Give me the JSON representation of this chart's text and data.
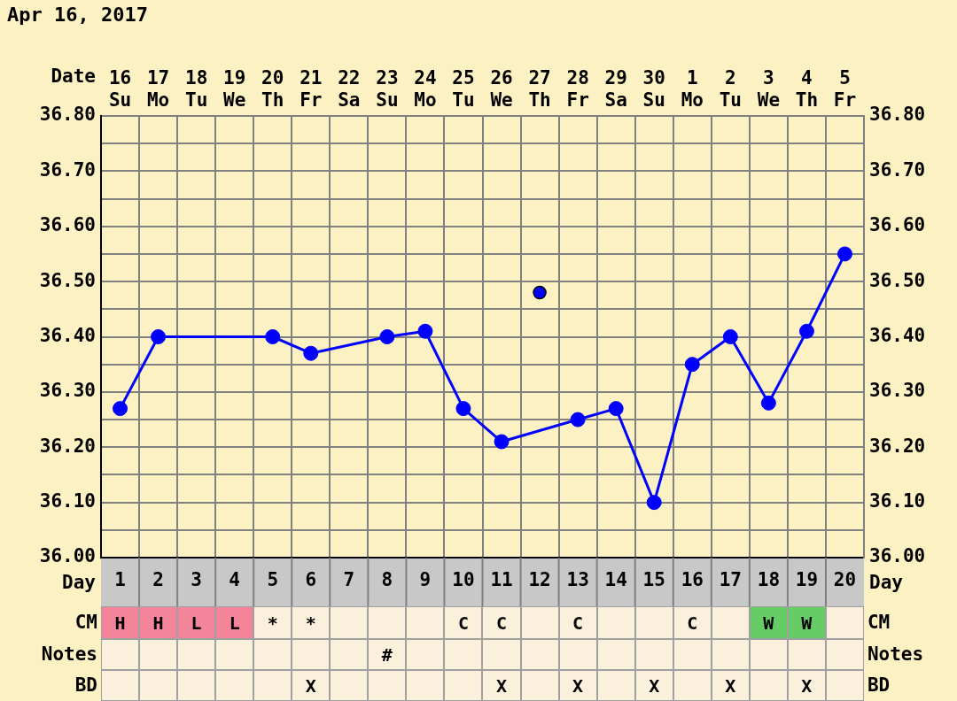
{
  "chart_data": [
    {
      "type": "line",
      "title": "Apr 16, 2017",
      "xlabel": "Date",
      "x2label": "Day",
      "categories": [
        "16 Su",
        "17 Mo",
        "18 Tu",
        "19 We",
        "20 Th",
        "21 Fr",
        "22 Sa",
        "23 Su",
        "24 Mo",
        "25 Tu",
        "26 We",
        "27 Th",
        "28 Fr",
        "29 Sa",
        "30 Su",
        "1 Mo",
        "2 Tu",
        "3 We",
        "4 Th",
        "5 Fr"
      ],
      "series": [
        {
          "type": "line",
          "color": "#0000ff",
          "values": [
            36.27,
            36.4,
            null,
            null,
            36.4,
            36.37,
            null,
            36.4,
            36.41,
            36.27,
            36.21,
            null,
            36.25,
            36.27,
            36.1,
            36.35,
            36.4,
            36.28,
            36.41,
            36.55
          ]
        },
        {
          "type": "scatter",
          "color": "#0000ff",
          "values": [
            null,
            null,
            null,
            null,
            null,
            null,
            null,
            null,
            null,
            null,
            null,
            36.48,
            null,
            null,
            null,
            null,
            null,
            null,
            null,
            null
          ]
        }
      ],
      "x2lim": [
        0.5,
        20.5
      ],
      "x2ticks": [
        1,
        2,
        3,
        4,
        5,
        6,
        7,
        8,
        9,
        10,
        11,
        12,
        13,
        14,
        15,
        16,
        17,
        18,
        19,
        20
      ],
      "ylim": [
        36.0,
        36.8
      ],
      "yticks": [
        {
          "value": 36.0,
          "label": "36.00"
        },
        {
          "value": 36.05,
          "label": null
        },
        {
          "value": 36.1,
          "label": "36.10"
        },
        {
          "value": 36.15,
          "label": null
        },
        {
          "value": 36.2,
          "label": "36.20"
        },
        {
          "value": 36.25,
          "label": null
        },
        {
          "value": 36.3,
          "label": "36.30"
        },
        {
          "value": 36.35,
          "label": null
        },
        {
          "value": 36.4,
          "label": "36.40"
        },
        {
          "value": 36.45,
          "label": null
        },
        {
          "value": 36.5,
          "label": "36.50"
        },
        {
          "value": 36.55,
          "label": null
        },
        {
          "value": 36.6,
          "label": "36.60"
        },
        {
          "value": 36.65,
          "label": null
        },
        {
          "value": 36.7,
          "label": "36.70"
        },
        {
          "value": 36.75,
          "label": null
        },
        {
          "value": 36.8,
          "label": "36.80"
        }
      ],
      "y2lim": [
        36.0,
        36.8
      ],
      "y2ticks": [
        {
          "value": 36.0,
          "label": "36.00"
        },
        {
          "value": 36.05,
          "label": null
        },
        {
          "value": 36.1,
          "label": "36.10"
        },
        {
          "value": 36.15,
          "label": null
        },
        {
          "value": 36.2,
          "label": "36.20"
        },
        {
          "value": 36.25,
          "label": null
        },
        {
          "value": 36.3,
          "label": "36.30"
        },
        {
          "value": 36.35,
          "label": null
        },
        {
          "value": 36.4,
          "label": "36.40"
        },
        {
          "value": 36.45,
          "label": null
        },
        {
          "value": 36.5,
          "label": "36.50"
        },
        {
          "value": 36.55,
          "label": null
        },
        {
          "value": 36.6,
          "label": "36.60"
        },
        {
          "value": 36.65,
          "label": null
        },
        {
          "value": 36.7,
          "label": "36.70"
        },
        {
          "value": 36.75,
          "label": null
        },
        {
          "value": 36.8,
          "label": "36.80"
        }
      ],
      "grid": true,
      "marker": "circle",
      "legend": false
    },
    {
      "type": "other",
      "y_categories": [
        "CM",
        "Notes",
        "BD"
      ],
      "y2_categories": [
        "CM",
        "Notes",
        "BD"
      ],
      "cell_labels": [
        [
          "H",
          "H",
          "L",
          "L",
          "*",
          "*",
          null,
          null,
          null,
          "C",
          "C",
          null,
          "C",
          null,
          null,
          "C",
          null,
          "W",
          "W",
          null
        ],
        [
          null,
          null,
          null,
          null,
          null,
          null,
          null,
          "#",
          null,
          null,
          null,
          null,
          null,
          null,
          null,
          null,
          null,
          null,
          null,
          null
        ],
        [
          null,
          null,
          null,
          null,
          null,
          "X",
          null,
          null,
          null,
          null,
          "X",
          null,
          "X",
          null,
          "X",
          null,
          "X",
          null,
          "X",
          null
        ]
      ],
      "colors": [
        [
          "#f4849a",
          "#f4849a",
          "#f4849a",
          "#f4849a",
          null,
          null,
          null,
          null,
          null,
          null,
          null,
          null,
          null,
          null,
          null,
          null,
          null,
          "#66cc66",
          "#66cc66",
          null
        ],
        [
          null,
          null,
          null,
          null,
          null,
          null,
          null,
          null,
          null,
          null,
          null,
          null,
          null,
          null,
          null,
          null,
          null,
          null,
          null,
          null
        ],
        [
          null,
          null,
          null,
          null,
          null,
          null,
          null,
          null,
          null,
          null,
          null,
          null,
          null,
          null,
          null,
          null,
          null,
          null,
          null,
          null
        ]
      ]
    }
  ]
}
